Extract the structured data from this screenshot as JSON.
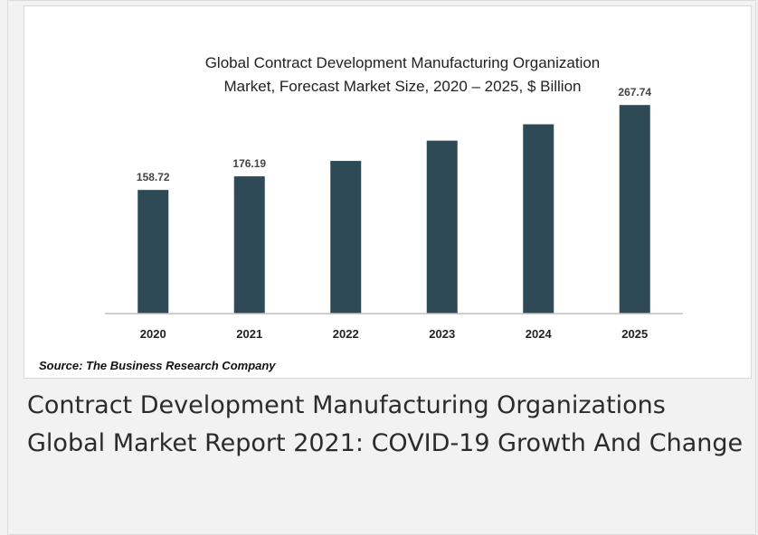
{
  "chart_data": {
    "type": "bar",
    "title_lines": [
      "Global Contract Development Manufacturing Organization",
      "Market, Forecast Market Size, 2020 – 2025, $ Billion"
    ],
    "categories": [
      "2020",
      "2021",
      "2022",
      "2023",
      "2024",
      "2025"
    ],
    "values": [
      158.72,
      176.19,
      196,
      222,
      243,
      267.74
    ],
    "data_labels": [
      "158.72",
      "176.19",
      "",
      "",
      "",
      "267.74"
    ],
    "ylim": [
      0,
      290
    ],
    "grid": false,
    "bar_color": "#2f4a57",
    "axis_color": "#bfbfbf"
  },
  "source": "Source: The Business Research Company",
  "caption": "Contract Development Manufacturing Organizations Global Market Report 2021: COVID-19 Growth And Change"
}
